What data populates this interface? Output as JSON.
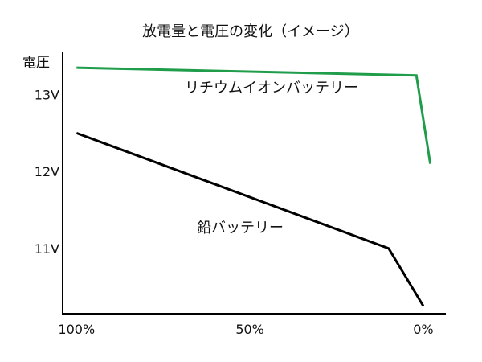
{
  "chart_data": {
    "type": "line",
    "title": "放電量と電圧の変化（イメージ）",
    "ylabel": "電圧",
    "x_ticks": [
      {
        "value": 100,
        "label": "100%"
      },
      {
        "value": 50,
        "label": "50%"
      },
      {
        "value": 0,
        "label": "0%"
      }
    ],
    "y_ticks": [
      {
        "value": 13,
        "label": "13V"
      },
      {
        "value": 12,
        "label": "12V"
      },
      {
        "value": 11,
        "label": "11V"
      }
    ],
    "xlim": [
      104,
      -6.5
    ],
    "ylim": [
      10.15,
      13.55
    ],
    "grid": false,
    "series": [
      {
        "name": "リチウムイオンバッテリー",
        "color": "#1f9d4b",
        "points": [
          [
            100,
            13.35
          ],
          [
            2,
            13.25
          ],
          [
            -2,
            12.1
          ]
        ]
      },
      {
        "name": "鉛バッテリー",
        "color": "#000000",
        "points": [
          [
            100,
            12.5
          ],
          [
            10,
            11.0
          ],
          [
            0,
            10.25
          ]
        ]
      }
    ]
  }
}
